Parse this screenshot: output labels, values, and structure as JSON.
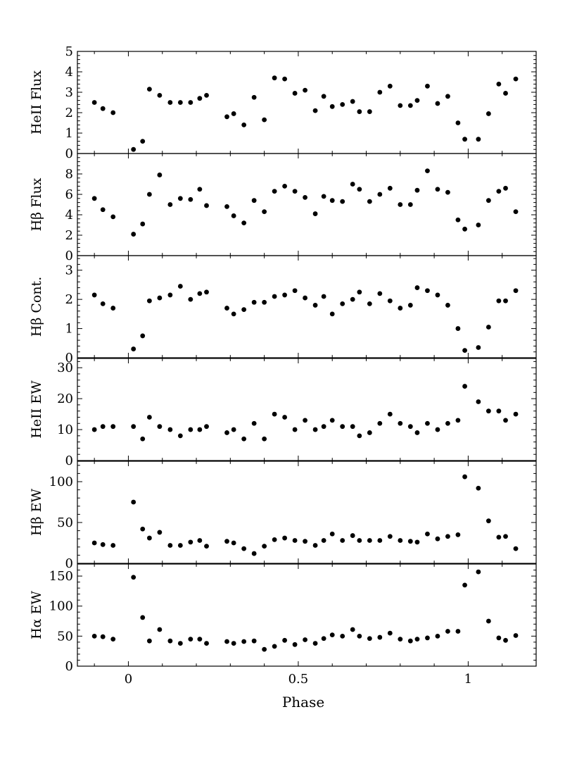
{
  "chart_data": {
    "type": "scatter",
    "xlabel": "Phase",
    "xlim": [
      -0.15,
      1.2
    ],
    "xticks": [
      {
        "v": 0,
        "label": "0"
      },
      {
        "v": 0.5,
        "label": "0.5"
      },
      {
        "v": 1,
        "label": "1"
      }
    ],
    "x": [
      -0.1,
      -0.075,
      -0.045,
      0.015,
      0.042,
      0.062,
      0.092,
      0.123,
      0.153,
      0.183,
      0.21,
      0.23,
      0.29,
      0.31,
      0.34,
      0.37,
      0.4,
      0.43,
      0.46,
      0.49,
      0.52,
      0.55,
      0.575,
      0.6,
      0.63,
      0.66,
      0.68,
      0.71,
      0.74,
      0.77,
      0.8,
      0.83,
      0.85,
      0.88,
      0.91,
      0.94,
      0.97,
      0.99,
      1.03,
      1.06,
      1.09,
      1.11,
      1.14
    ],
    "panels": [
      {
        "ylabel": "HeII Flux",
        "ylim": [
          0,
          5
        ],
        "yticks": [
          0,
          1,
          2,
          3,
          4,
          5
        ],
        "values": [
          2.5,
          2.2,
          2.0,
          0.2,
          0.6,
          3.15,
          2.85,
          2.5,
          2.5,
          2.5,
          2.7,
          2.85,
          1.8,
          1.95,
          1.4,
          2.75,
          1.65,
          3.7,
          3.65,
          2.95,
          3.1,
          2.1,
          2.8,
          2.3,
          2.4,
          2.55,
          2.05,
          2.05,
          3.0,
          3.3,
          2.35,
          2.35,
          2.6,
          3.3,
          2.45,
          2.8,
          1.5,
          0.7,
          0.7,
          1.95,
          3.4,
          2.95,
          3.65
        ]
      },
      {
        "ylabel": "Hβ Flux",
        "ylim": [
          0,
          10
        ],
        "yticks": [
          0,
          2,
          4,
          6,
          8
        ],
        "values": [
          5.6,
          4.5,
          3.8,
          2.1,
          3.1,
          6.0,
          7.9,
          5.0,
          5.6,
          5.5,
          6.5,
          4.9,
          4.8,
          3.9,
          3.2,
          5.4,
          4.3,
          6.3,
          6.8,
          6.3,
          5.7,
          4.1,
          5.8,
          5.4,
          5.3,
          7.0,
          6.5,
          5.3,
          6.0,
          6.6,
          5.0,
          5.0,
          6.4,
          8.3,
          6.5,
          6.2,
          3.5,
          2.6,
          3.0,
          5.4,
          6.3,
          6.6,
          4.3
        ]
      },
      {
        "ylabel": "Hβ Cont.",
        "ylim": [
          0,
          3.5
        ],
        "yticks": [
          0,
          1,
          2,
          3
        ],
        "values": [
          2.15,
          1.85,
          1.7,
          0.3,
          0.75,
          1.95,
          2.05,
          2.15,
          2.45,
          2.0,
          2.2,
          2.25,
          1.7,
          1.5,
          1.65,
          1.9,
          1.9,
          2.1,
          2.15,
          2.3,
          2.05,
          1.8,
          2.1,
          1.5,
          1.85,
          2.0,
          2.25,
          1.85,
          2.2,
          1.95,
          1.7,
          1.8,
          2.4,
          2.3,
          2.15,
          1.8,
          1.0,
          0.25,
          0.35,
          1.05,
          1.95,
          1.95,
          2.3
        ]
      },
      {
        "ylabel": "HeII  EW",
        "ylim": [
          0,
          33
        ],
        "yticks": [
          0,
          10,
          20,
          30
        ],
        "values": [
          10,
          11,
          11,
          11,
          7,
          14,
          11,
          10,
          8,
          10,
          10,
          11,
          9,
          10,
          7,
          12,
          7,
          15,
          14,
          10,
          13,
          10,
          11,
          13,
          11,
          11,
          8,
          9,
          12,
          15,
          12,
          11,
          9,
          12,
          10,
          12,
          13,
          24,
          19,
          16,
          16,
          13,
          15
        ]
      },
      {
        "ylabel": "Hβ EW",
        "ylim": [
          0,
          125
        ],
        "yticks": [
          0,
          50,
          100
        ],
        "values": [
          25,
          23,
          22,
          75,
          42,
          31,
          38,
          22,
          22,
          26,
          28,
          21,
          27,
          25,
          18,
          12,
          21,
          29,
          31,
          28,
          27,
          22,
          28,
          36,
          28,
          34,
          28,
          28,
          28,
          33,
          28,
          27,
          26,
          36,
          30,
          33,
          35,
          106,
          92,
          52,
          32,
          33,
          18
        ]
      },
      {
        "ylabel": "Hα EW",
        "ylim": [
          0,
          170
        ],
        "yticks": [
          0,
          50,
          100,
          150
        ],
        "values": [
          50,
          49,
          45,
          148,
          81,
          42,
          61,
          42,
          38,
          45,
          45,
          38,
          41,
          38,
          41,
          42,
          28,
          33,
          43,
          36,
          44,
          38,
          46,
          52,
          50,
          61,
          50,
          46,
          48,
          55,
          45,
          42,
          45,
          47,
          50,
          58,
          58,
          135,
          157,
          75,
          47,
          43,
          51
        ]
      }
    ]
  }
}
